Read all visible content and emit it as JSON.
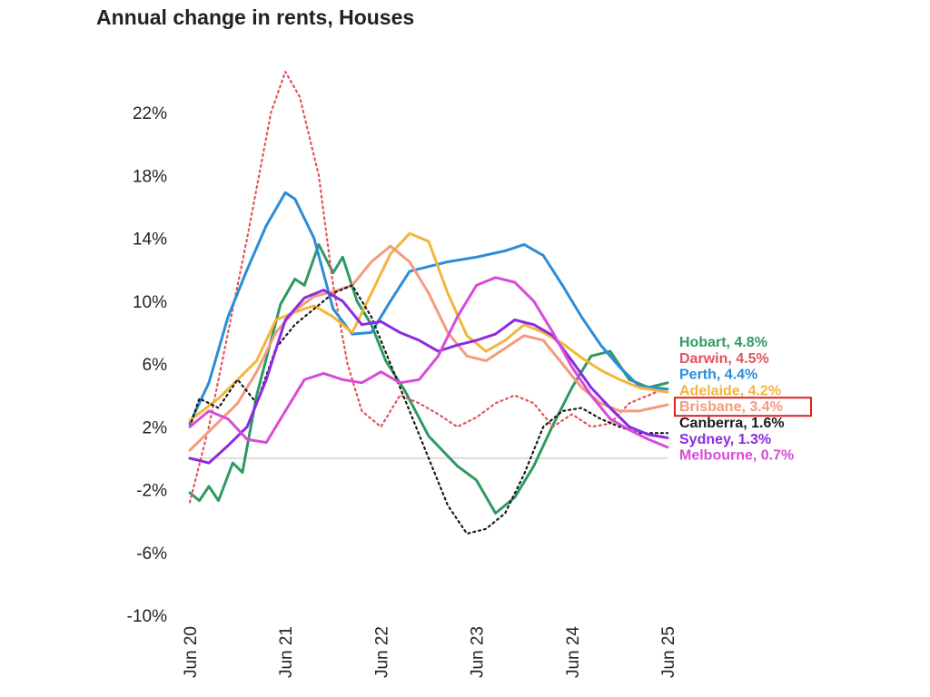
{
  "chart_data": {
    "type": "line",
    "title": "Annual change in rents, Houses",
    "xlabel": "",
    "ylabel": "",
    "x_ticks": [
      "Jun 20",
      "Jun 21",
      "Jun 22",
      "Jun 23",
      "Jun 24",
      "Jun 25"
    ],
    "x_range": [
      2020.5,
      2025.5
    ],
    "ylim": [
      -10,
      24
    ],
    "y_ticks": [
      22,
      18,
      14,
      10,
      6,
      2,
      -2,
      -6,
      -10
    ],
    "y_tick_labels": [
      "22%",
      "18%",
      "14%",
      "10%",
      "6%",
      "2%",
      "-2%",
      "-6%",
      "-10%"
    ],
    "zero_line": true,
    "grid": false,
    "legend": "end-of-line labels (right)",
    "highlight_series": "Brisbane",
    "series": [
      {
        "name": "Hobart",
        "label": "Hobart, 4.8%",
        "color": "#2e9a60",
        "dash": "solid",
        "points": [
          [
            2020.5,
            -2.2
          ],
          [
            2020.6,
            -2.7
          ],
          [
            2020.7,
            -1.8
          ],
          [
            2020.8,
            -2.7
          ],
          [
            2020.95,
            -0.3
          ],
          [
            2021.05,
            -0.9
          ],
          [
            2021.2,
            4
          ],
          [
            2021.45,
            9.8
          ],
          [
            2021.6,
            11.4
          ],
          [
            2021.7,
            11
          ],
          [
            2021.85,
            13.6
          ],
          [
            2022.0,
            11.8
          ],
          [
            2022.1,
            12.8
          ],
          [
            2022.25,
            10
          ],
          [
            2022.4,
            8.5
          ],
          [
            2022.55,
            6.2
          ],
          [
            2022.75,
            4.3
          ],
          [
            2023.0,
            1.4
          ],
          [
            2023.3,
            -0.5
          ],
          [
            2023.5,
            -1.4
          ],
          [
            2023.7,
            -3.5
          ],
          [
            2023.9,
            -2.5
          ],
          [
            2024.1,
            -0.5
          ],
          [
            2024.3,
            2.1
          ],
          [
            2024.5,
            4.5
          ],
          [
            2024.7,
            6.5
          ],
          [
            2024.9,
            6.8
          ],
          [
            2025.1,
            5
          ],
          [
            2025.3,
            4.5
          ],
          [
            2025.5,
            4.8
          ]
        ]
      },
      {
        "name": "Darwin",
        "label": "Darwin, 4.5%",
        "color": "#e2545a",
        "dash": "dotted",
        "points": [
          [
            2020.5,
            -2.8
          ],
          [
            2020.7,
            2
          ],
          [
            2020.9,
            8
          ],
          [
            2021.1,
            14
          ],
          [
            2021.35,
            22
          ],
          [
            2021.5,
            24.6
          ],
          [
            2021.65,
            23
          ],
          [
            2021.85,
            18
          ],
          [
            2022.0,
            11
          ],
          [
            2022.15,
            6
          ],
          [
            2022.3,
            3
          ],
          [
            2022.5,
            2
          ],
          [
            2022.7,
            4
          ],
          [
            2022.9,
            3.5
          ],
          [
            2023.1,
            2.8
          ],
          [
            2023.3,
            2
          ],
          [
            2023.5,
            2.6
          ],
          [
            2023.7,
            3.5
          ],
          [
            2023.9,
            4
          ],
          [
            2024.1,
            3.5
          ],
          [
            2024.3,
            2
          ],
          [
            2024.5,
            2.8
          ],
          [
            2024.7,
            2
          ],
          [
            2024.9,
            2.2
          ],
          [
            2025.1,
            3.5
          ],
          [
            2025.3,
            4
          ],
          [
            2025.5,
            4.5
          ]
        ]
      },
      {
        "name": "Perth",
        "label": "Perth, 4.4%",
        "color": "#2b8cd8",
        "dash": "solid",
        "points": [
          [
            2020.5,
            2.2
          ],
          [
            2020.7,
            4.8
          ],
          [
            2020.9,
            9
          ],
          [
            2021.1,
            12
          ],
          [
            2021.3,
            14.8
          ],
          [
            2021.5,
            16.9
          ],
          [
            2021.6,
            16.5
          ],
          [
            2021.8,
            14
          ],
          [
            2022.0,
            9.5
          ],
          [
            2022.2,
            7.9
          ],
          [
            2022.4,
            8
          ],
          [
            2022.6,
            10
          ],
          [
            2022.8,
            11.9
          ],
          [
            2023.0,
            12.2
          ],
          [
            2023.2,
            12.5
          ],
          [
            2023.5,
            12.8
          ],
          [
            2023.8,
            13.2
          ],
          [
            2024.0,
            13.6
          ],
          [
            2024.2,
            12.9
          ],
          [
            2024.4,
            11
          ],
          [
            2024.6,
            9
          ],
          [
            2024.8,
            7.2
          ],
          [
            2025.0,
            5.8
          ],
          [
            2025.2,
            4.6
          ],
          [
            2025.5,
            4.4
          ]
        ]
      },
      {
        "name": "Adelaide",
        "label": "Adelaide, 4.2%",
        "color": "#f4b53a",
        "dash": "solid",
        "points": [
          [
            2020.5,
            2.4
          ],
          [
            2020.8,
            3.8
          ],
          [
            2021.0,
            5
          ],
          [
            2021.2,
            6.2
          ],
          [
            2021.4,
            8.8
          ],
          [
            2021.6,
            9.3
          ],
          [
            2021.8,
            9.7
          ],
          [
            2022.0,
            9
          ],
          [
            2022.2,
            8
          ],
          [
            2022.4,
            10.5
          ],
          [
            2022.6,
            13
          ],
          [
            2022.8,
            14.3
          ],
          [
            2023.0,
            13.8
          ],
          [
            2023.2,
            10.5
          ],
          [
            2023.4,
            7.8
          ],
          [
            2023.6,
            6.8
          ],
          [
            2023.8,
            7.5
          ],
          [
            2024.0,
            8.5
          ],
          [
            2024.2,
            8
          ],
          [
            2024.4,
            7.3
          ],
          [
            2024.6,
            6.4
          ],
          [
            2024.8,
            5.6
          ],
          [
            2025.0,
            5
          ],
          [
            2025.2,
            4.5
          ],
          [
            2025.5,
            4.2
          ]
        ]
      },
      {
        "name": "Brisbane",
        "label": "Brisbane, 3.4%",
        "color": "#f59b7c",
        "dash": "solid",
        "points": [
          [
            2020.5,
            0.5
          ],
          [
            2020.8,
            2.3
          ],
          [
            2021.0,
            3.5
          ],
          [
            2021.2,
            5.5
          ],
          [
            2021.4,
            8
          ],
          [
            2021.6,
            9.4
          ],
          [
            2021.8,
            10.3
          ],
          [
            2022.0,
            10.6
          ],
          [
            2022.2,
            11
          ],
          [
            2022.4,
            12.5
          ],
          [
            2022.6,
            13.5
          ],
          [
            2022.8,
            12.5
          ],
          [
            2023.0,
            10.5
          ],
          [
            2023.2,
            8
          ],
          [
            2023.4,
            6.5
          ],
          [
            2023.6,
            6.2
          ],
          [
            2023.8,
            7
          ],
          [
            2024.0,
            7.8
          ],
          [
            2024.2,
            7.5
          ],
          [
            2024.4,
            6
          ],
          [
            2024.6,
            4.5
          ],
          [
            2024.8,
            3.5
          ],
          [
            2025.0,
            3
          ],
          [
            2025.2,
            3
          ],
          [
            2025.5,
            3.4
          ]
        ]
      },
      {
        "name": "Canberra",
        "label": "Canberra, 1.6%",
        "color": "#1a1a1a",
        "dash": "dotted",
        "points": [
          [
            2020.5,
            2
          ],
          [
            2020.6,
            3.8
          ],
          [
            2020.8,
            3.2
          ],
          [
            2021.0,
            5
          ],
          [
            2021.2,
            3.5
          ],
          [
            2021.4,
            7
          ],
          [
            2021.6,
            8.5
          ],
          [
            2021.8,
            9.5
          ],
          [
            2022.0,
            10.5
          ],
          [
            2022.2,
            11
          ],
          [
            2022.4,
            9
          ],
          [
            2022.6,
            6
          ],
          [
            2022.8,
            3
          ],
          [
            2023.0,
            0
          ],
          [
            2023.2,
            -3
          ],
          [
            2023.4,
            -4.8
          ],
          [
            2023.6,
            -4.5
          ],
          [
            2023.8,
            -3.5
          ],
          [
            2024.0,
            -1
          ],
          [
            2024.2,
            2
          ],
          [
            2024.4,
            3
          ],
          [
            2024.6,
            3.2
          ],
          [
            2024.8,
            2.5
          ],
          [
            2025.0,
            2
          ],
          [
            2025.2,
            1.6
          ],
          [
            2025.5,
            1.6
          ]
        ]
      },
      {
        "name": "Sydney",
        "label": "Sydney, 1.3%",
        "color": "#8b2be2",
        "dash": "solid",
        "points": [
          [
            2020.5,
            0
          ],
          [
            2020.7,
            -0.3
          ],
          [
            2020.9,
            0.8
          ],
          [
            2021.1,
            2
          ],
          [
            2021.3,
            5
          ],
          [
            2021.5,
            8.8
          ],
          [
            2021.7,
            10.2
          ],
          [
            2021.9,
            10.7
          ],
          [
            2022.1,
            10
          ],
          [
            2022.3,
            8.5
          ],
          [
            2022.5,
            8.7
          ],
          [
            2022.7,
            8
          ],
          [
            2022.9,
            7.5
          ],
          [
            2023.1,
            6.8
          ],
          [
            2023.3,
            7.2
          ],
          [
            2023.5,
            7.5
          ],
          [
            2023.7,
            7.9
          ],
          [
            2023.9,
            8.8
          ],
          [
            2024.1,
            8.5
          ],
          [
            2024.3,
            7.8
          ],
          [
            2024.5,
            6.2
          ],
          [
            2024.7,
            4.5
          ],
          [
            2024.9,
            3.2
          ],
          [
            2025.1,
            2
          ],
          [
            2025.3,
            1.5
          ],
          [
            2025.5,
            1.3
          ]
        ]
      },
      {
        "name": "Melbourne",
        "label": "Melbourne, 0.7%",
        "color": "#d84bd8",
        "dash": "solid",
        "points": [
          [
            2020.5,
            2
          ],
          [
            2020.7,
            3
          ],
          [
            2020.9,
            2.5
          ],
          [
            2021.1,
            1.2
          ],
          [
            2021.3,
            1
          ],
          [
            2021.5,
            3
          ],
          [
            2021.7,
            5
          ],
          [
            2021.9,
            5.4
          ],
          [
            2022.1,
            5
          ],
          [
            2022.3,
            4.8
          ],
          [
            2022.5,
            5.5
          ],
          [
            2022.7,
            4.8
          ],
          [
            2022.9,
            5
          ],
          [
            2023.1,
            6.5
          ],
          [
            2023.3,
            9
          ],
          [
            2023.5,
            11
          ],
          [
            2023.7,
            11.5
          ],
          [
            2023.9,
            11.2
          ],
          [
            2024.1,
            10
          ],
          [
            2024.3,
            8
          ],
          [
            2024.5,
            5.8
          ],
          [
            2024.7,
            4
          ],
          [
            2024.9,
            2.5
          ],
          [
            2025.1,
            1.8
          ],
          [
            2025.3,
            1.2
          ],
          [
            2025.5,
            0.7
          ]
        ]
      }
    ]
  },
  "colors": {
    "zero_line": "#dddddd",
    "highlight_box": "#e02020"
  }
}
